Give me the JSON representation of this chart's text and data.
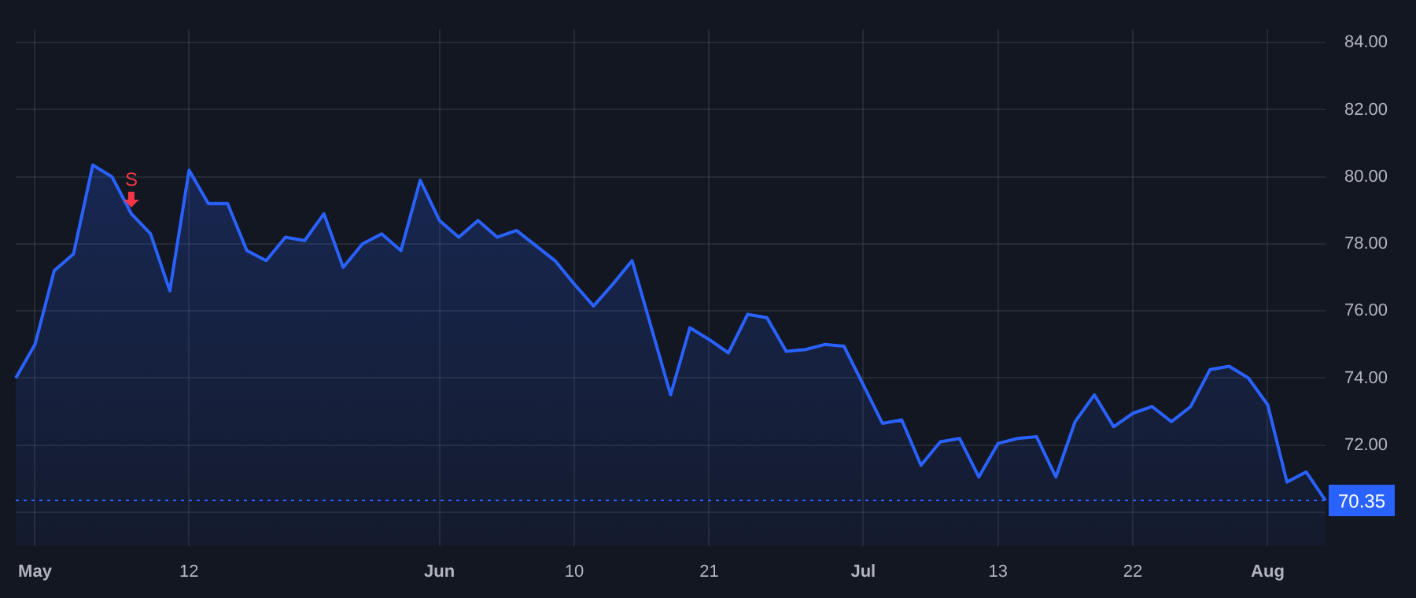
{
  "chart_data": {
    "type": "area",
    "categories": [
      null,
      "May",
      null,
      null,
      null,
      null,
      null,
      null,
      null,
      "12",
      null,
      null,
      null,
      null,
      null,
      null,
      null,
      null,
      null,
      null,
      null,
      null,
      "Jun",
      null,
      null,
      null,
      null,
      null,
      null,
      "10",
      null,
      null,
      null,
      null,
      null,
      null,
      "21",
      null,
      null,
      null,
      null,
      null,
      null,
      null,
      "Jul",
      null,
      null,
      null,
      null,
      null,
      null,
      "13",
      null,
      null,
      null,
      null,
      null,
      null,
      "22",
      null,
      null,
      null,
      null,
      null,
      null,
      "Aug",
      null,
      null,
      null
    ],
    "series": [
      {
        "color": "#2962ff",
        "values": [
          74.0,
          75.0,
          77.2,
          77.7,
          80.35,
          80.0,
          78.9,
          78.3,
          76.6,
          80.2,
          79.2,
          79.2,
          77.8,
          77.5,
          78.2,
          78.1,
          78.9,
          77.3,
          78.0,
          78.3,
          77.8,
          79.9,
          78.7,
          78.2,
          78.7,
          78.2,
          78.4,
          77.95,
          77.5,
          76.8,
          76.15,
          76.8,
          77.5,
          75.5,
          73.5,
          75.5,
          75.15,
          74.75,
          75.9,
          75.8,
          74.8,
          74.85,
          75.0,
          74.95,
          73.8,
          72.65,
          72.75,
          71.4,
          72.1,
          72.2,
          71.05,
          72.05,
          72.2,
          72.25,
          71.05,
          72.7,
          73.5,
          72.55,
          72.95,
          73.15,
          72.7,
          73.15,
          74.25,
          74.35,
          74.0,
          73.2,
          70.9,
          71.2,
          70.35
        ]
      }
    ],
    "ylim": [
      69,
      84.4
    ],
    "yticks": [
      {
        "value": 70,
        "label": null
      },
      {
        "value": 72,
        "label": "72.00"
      },
      {
        "value": 74,
        "label": "74.00"
      },
      {
        "value": 76,
        "label": "76.00"
      },
      {
        "value": 78,
        "label": "78.00"
      },
      {
        "value": 80,
        "label": "80.00"
      },
      {
        "value": 82,
        "label": "82.00"
      },
      {
        "value": 84,
        "label": "84.00"
      }
    ],
    "grid": true,
    "ref_lines": [
      {
        "axis": "y",
        "value": 70.35,
        "label": "70.35",
        "color": "#2962ff",
        "line_style": "dotted"
      }
    ],
    "annotations": [
      {
        "text": "S",
        "y": 78.9
      }
    ]
  }
}
